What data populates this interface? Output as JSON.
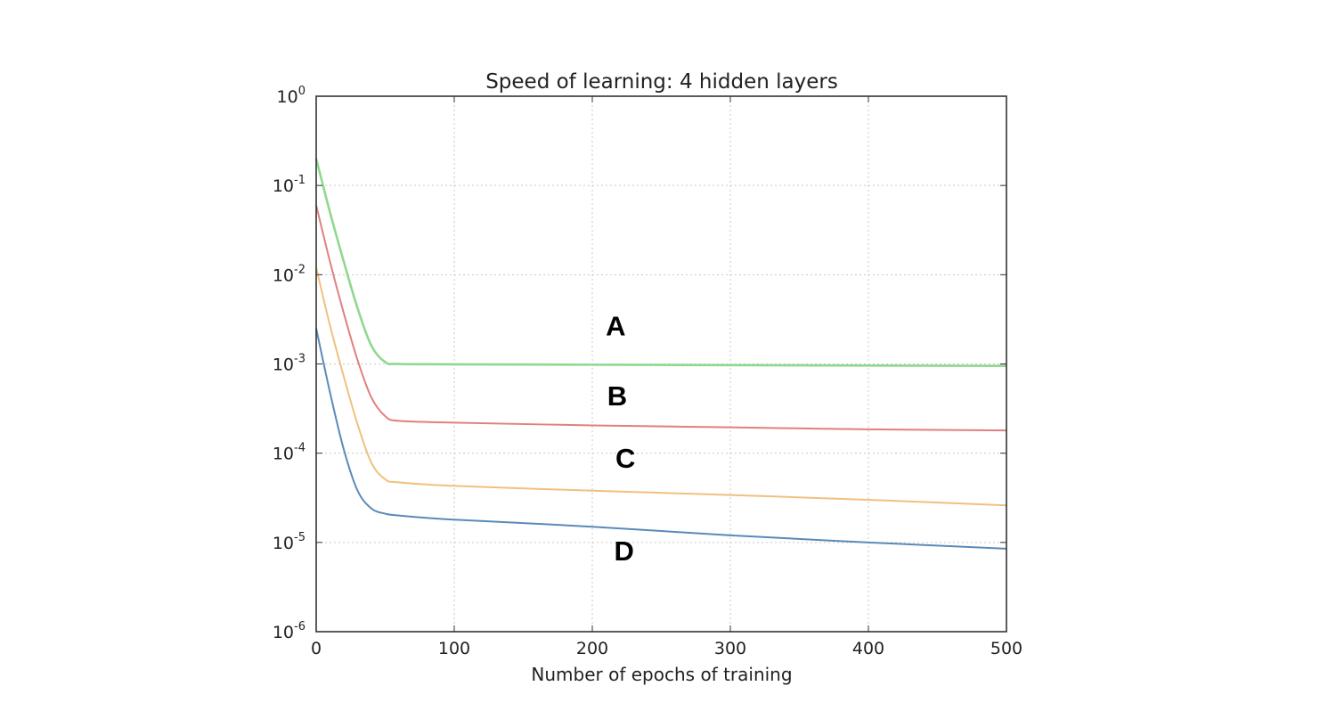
{
  "chart_data": {
    "type": "line",
    "title": "Speed of learning: 4 hidden layers",
    "xlabel": "Number of epochs of training",
    "ylabel": "",
    "xlim": [
      0,
      500
    ],
    "ylim": [
      1e-06,
      1
    ],
    "yscale": "log",
    "grid": true,
    "x_ticks": [
      0,
      100,
      200,
      300,
      400,
      500
    ],
    "x_tick_labels": [
      "0",
      "100",
      "200",
      "300",
      "400",
      "500"
    ],
    "y_ticks": [
      1,
      0.1,
      0.01,
      0.001,
      0.0001,
      1e-05,
      1e-06
    ],
    "y_tick_labels": [
      {
        "base": "10",
        "exp": "0"
      },
      {
        "base": "10",
        "exp": "-1"
      },
      {
        "base": "10",
        "exp": "-2"
      },
      {
        "base": "10",
        "exp": "-3"
      },
      {
        "base": "10",
        "exp": "-4"
      },
      {
        "base": "10",
        "exp": "-5"
      },
      {
        "base": "10",
        "exp": "-6"
      }
    ],
    "series": [
      {
        "color": "#8fd88f",
        "x": [
          0,
          10,
          20,
          30,
          40,
          50,
          60,
          100,
          200,
          300,
          400,
          500
        ],
        "y": [
          0.2,
          0.05,
          0.014,
          0.0042,
          0.0016,
          0.00105,
          0.001,
          0.00099,
          0.00098,
          0.00097,
          0.00096,
          0.00095
        ]
      },
      {
        "color": "#e08080",
        "x": [
          0,
          10,
          20,
          30,
          40,
          50,
          60,
          100,
          200,
          300,
          400,
          500
        ],
        "y": [
          0.06,
          0.014,
          0.0037,
          0.0011,
          0.00042,
          0.00026,
          0.00023,
          0.00022,
          0.000205,
          0.000195,
          0.000185,
          0.00018
        ]
      },
      {
        "color": "#f0c080",
        "x": [
          0,
          10,
          20,
          30,
          40,
          50,
          60,
          100,
          200,
          300,
          400,
          500
        ],
        "y": [
          0.012,
          0.0027,
          0.00072,
          0.00021,
          7.8e-05,
          5.1e-05,
          4.7e-05,
          4.3e-05,
          3.8e-05,
          3.4e-05,
          3e-05,
          2.6e-05
        ]
      },
      {
        "color": "#5a8ab8",
        "x": [
          0,
          10,
          20,
          30,
          40,
          50,
          60,
          100,
          200,
          300,
          400,
          500
        ],
        "y": [
          0.0025,
          0.00048,
          0.00011,
          3.8e-05,
          2.4e-05,
          2.1e-05,
          2e-05,
          1.8e-05,
          1.5e-05,
          1.2e-05,
          1e-05,
          8.5e-06
        ]
      }
    ],
    "annotations": [
      {
        "text": "A",
        "x": 217,
        "y": 0.0027
      },
      {
        "text": "B",
        "x": 218,
        "y": 0.00044
      },
      {
        "text": "C",
        "x": 224,
        "y": 8.8e-05
      },
      {
        "text": "D",
        "x": 223,
        "y": 8.1e-06
      }
    ]
  }
}
